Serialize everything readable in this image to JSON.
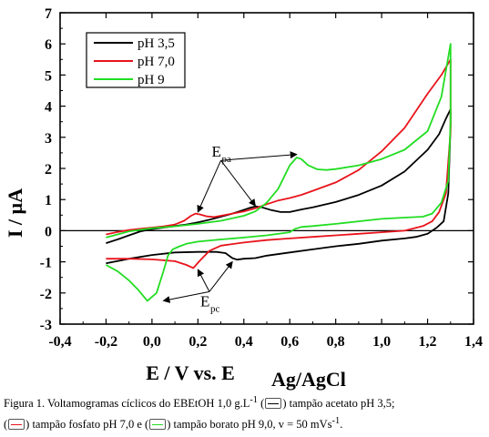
{
  "chart_data": {
    "type": "line",
    "xlabel": "E / V vs. E",
    "xlabel_sub": "Ag/AgCl",
    "ylabel": "I / µA",
    "xlim": [
      -0.4,
      1.4
    ],
    "ylim": [
      -3,
      7
    ],
    "x_ticks": [
      "-0,4",
      "-0,2",
      "0,0",
      "0,2",
      "0,4",
      "0,6",
      "0,8",
      "1,0",
      "1,2",
      "1,4"
    ],
    "y_ticks": [
      "-3",
      "-2",
      "-1",
      "0",
      "1",
      "2",
      "3",
      "4",
      "5",
      "6",
      "7"
    ],
    "zero_line": true,
    "grid": false,
    "legend_position": "top-left",
    "series": [
      {
        "name": "pH 3,5",
        "color": "#000000",
        "x": [
          -0.2,
          -0.15,
          -0.1,
          -0.05,
          0.0,
          0.05,
          0.1,
          0.15,
          0.2,
          0.25,
          0.3,
          0.35,
          0.38,
          0.42,
          0.45,
          0.48,
          0.52,
          0.56,
          0.6,
          0.65,
          0.7,
          0.8,
          0.9,
          1.0,
          1.1,
          1.2,
          1.25,
          1.28,
          1.3,
          1.3,
          1.29,
          1.27,
          1.24,
          1.2,
          1.15,
          1.1,
          1.0,
          0.9,
          0.8,
          0.7,
          0.6,
          0.5,
          0.45,
          0.4,
          0.37,
          0.35,
          0.32,
          0.28,
          0.2,
          0.1,
          0.0,
          -0.1,
          -0.2
        ],
        "y": [
          -0.4,
          -0.28,
          -0.15,
          -0.02,
          0.05,
          0.1,
          0.15,
          0.2,
          0.27,
          0.35,
          0.45,
          0.55,
          0.62,
          0.72,
          0.78,
          0.75,
          0.66,
          0.6,
          0.6,
          0.68,
          0.75,
          0.92,
          1.15,
          1.45,
          1.9,
          2.6,
          3.1,
          3.6,
          3.9,
          3.4,
          1.2,
          0.3,
          0.1,
          -0.1,
          -0.2,
          -0.25,
          -0.32,
          -0.42,
          -0.5,
          -0.6,
          -0.7,
          -0.8,
          -0.88,
          -0.9,
          -0.93,
          -0.88,
          -0.72,
          -0.68,
          -0.68,
          -0.7,
          -0.78,
          -0.9,
          -1.05
        ]
      },
      {
        "name": "pH 7,0",
        "color": "#e8141c",
        "x": [
          -0.2,
          -0.15,
          -0.1,
          -0.05,
          0.0,
          0.05,
          0.1,
          0.14,
          0.17,
          0.19,
          0.21,
          0.24,
          0.27,
          0.3,
          0.35,
          0.4,
          0.45,
          0.5,
          0.55,
          0.6,
          0.65,
          0.7,
          0.8,
          0.9,
          1.0,
          1.1,
          1.2,
          1.26,
          1.3,
          1.3,
          1.28,
          1.25,
          1.22,
          1.18,
          1.1,
          1.0,
          0.9,
          0.8,
          0.7,
          0.6,
          0.5,
          0.4,
          0.3,
          0.25,
          0.21,
          0.18,
          0.15,
          0.1,
          0.0,
          -0.1,
          -0.2
        ],
        "y": [
          -0.12,
          -0.04,
          0.02,
          0.06,
          0.1,
          0.14,
          0.2,
          0.32,
          0.48,
          0.55,
          0.52,
          0.46,
          0.44,
          0.48,
          0.55,
          0.62,
          0.72,
          0.85,
          0.97,
          1.05,
          1.15,
          1.28,
          1.55,
          1.95,
          2.55,
          3.3,
          4.4,
          5.0,
          5.5,
          3.2,
          1.2,
          0.6,
          0.3,
          0.15,
          0.0,
          -0.05,
          -0.1,
          -0.15,
          -0.2,
          -0.25,
          -0.3,
          -0.38,
          -0.48,
          -0.65,
          -0.95,
          -1.2,
          -1.1,
          -0.98,
          -0.92,
          -0.9,
          -0.9
        ]
      },
      {
        "name": "pH 9",
        "color": "#22dd22",
        "x": [
          -0.2,
          -0.1,
          0.0,
          0.1,
          0.2,
          0.3,
          0.4,
          0.45,
          0.5,
          0.55,
          0.58,
          0.6,
          0.63,
          0.65,
          0.68,
          0.72,
          0.76,
          0.8,
          0.9,
          1.0,
          1.1,
          1.2,
          1.26,
          1.3,
          1.3,
          1.29,
          1.26,
          1.22,
          1.18,
          1.1,
          1.0,
          0.9,
          0.8,
          0.7,
          0.65,
          0.62,
          0.6,
          0.5,
          0.4,
          0.3,
          0.2,
          0.15,
          0.12,
          0.09,
          0.07,
          0.05,
          0.02,
          -0.02,
          -0.06,
          -0.1,
          -0.15,
          -0.2
        ],
        "y": [
          -0.22,
          -0.02,
          0.08,
          0.14,
          0.22,
          0.32,
          0.48,
          0.62,
          0.9,
          1.35,
          1.8,
          2.1,
          2.35,
          2.3,
          2.1,
          1.97,
          1.95,
          1.98,
          2.1,
          2.3,
          2.6,
          3.2,
          4.3,
          6.0,
          3.5,
          1.6,
          0.9,
          0.55,
          0.45,
          0.42,
          0.38,
          0.3,
          0.22,
          0.15,
          0.12,
          0.05,
          -0.05,
          -0.15,
          -0.22,
          -0.28,
          -0.35,
          -0.42,
          -0.5,
          -0.6,
          -0.8,
          -1.3,
          -2.0,
          -2.25,
          -1.9,
          -1.6,
          -1.3,
          -1.1
        ]
      }
    ],
    "annotations": [
      {
        "label": "E",
        "sub": "pa",
        "x": 0.3,
        "y": 2.55,
        "arrows_to": [
          [
            0.2,
            0.6
          ],
          [
            0.45,
            0.8
          ],
          [
            0.63,
            2.45
          ]
        ]
      },
      {
        "label": "E",
        "sub": "pc",
        "x": 0.25,
        "y": -2.25,
        "arrows_to": [
          [
            0.05,
            -2.25
          ],
          [
            0.2,
            -1.25
          ],
          [
            0.35,
            -1.0
          ]
        ]
      }
    ]
  },
  "caption": {
    "line1_a": "Figura 1. Voltamogramas cíclicos do EBEtOH 1,0 g.L",
    "line1_sup": "-1",
    "line1_b": " (",
    "line1_c": ") tampão acetato pH 3,5;",
    "line2_a": "(",
    "line2_b": ") tampão fosfato pH 7,0 e (",
    "line2_c": ") tampão borato pH 9,0, v = 50 mVs",
    "line2_sup": "-1",
    "line2_d": "."
  }
}
